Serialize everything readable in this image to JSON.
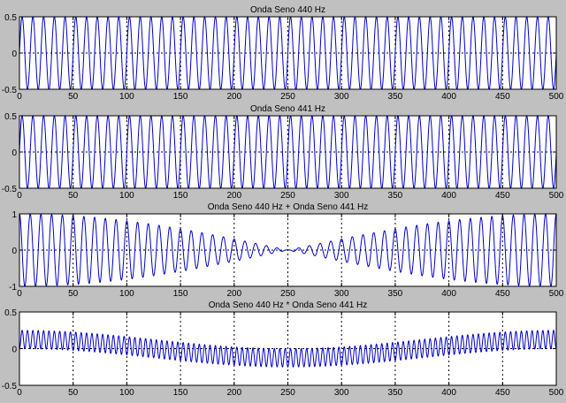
{
  "figure": {
    "background": "#c0c0c0",
    "axes_color": "#ffffff",
    "line_color": "#0000c8",
    "grid_color": "#000000"
  },
  "chart_data": [
    {
      "type": "line",
      "title": "Onda Seno 440 Hz",
      "xlabel": "",
      "ylabel": "",
      "xlim": [
        0,
        500
      ],
      "ylim": [
        -0.5,
        0.5
      ],
      "xticks": [
        "0",
        "50",
        "100",
        "150",
        "200",
        "250",
        "300",
        "350",
        "400",
        "450",
        "500"
      ],
      "yticks": [
        "-0.5",
        "0",
        "0.5"
      ],
      "grid": true,
      "series": [
        {
          "amplitude": 0.5,
          "cycles_in_view": 50,
          "freq_hz": 440
        }
      ]
    },
    {
      "type": "line",
      "title": "Onda Seno 441 Hz",
      "xlabel": "",
      "ylabel": "",
      "xlim": [
        0,
        500
      ],
      "ylim": [
        -0.5,
        0.5
      ],
      "xticks": [
        "0",
        "50",
        "100",
        "150",
        "200",
        "250",
        "300",
        "350",
        "400",
        "450",
        "500"
      ],
      "yticks": [
        "-0.5",
        "0",
        "0.5"
      ],
      "grid": true,
      "series": [
        {
          "amplitude": 0.5,
          "cycles_in_view": 50,
          "freq_hz": 441
        }
      ]
    },
    {
      "type": "line",
      "title": "Onda Seno 440 Hz + Onda Seno 441 Hz",
      "xlabel": "",
      "ylabel": "",
      "xlim": [
        0,
        500
      ],
      "ylim": [
        -1,
        1
      ],
      "xticks": [
        "0",
        "50",
        "100",
        "150",
        "200",
        "250",
        "300",
        "350",
        "400",
        "450",
        "500"
      ],
      "yticks": [
        "-1",
        "0",
        "1"
      ],
      "grid": true,
      "series": [
        {
          "amplitude": 1.0,
          "cycles_in_view": 50,
          "envelope": "beat_sum",
          "min_envelope_at_x": 250
        }
      ]
    },
    {
      "type": "line",
      "title": "Onda Seno 440 Hz * Onda Seno 441 Hz",
      "xlabel": "",
      "ylabel": "",
      "xlim": [
        0,
        500
      ],
      "ylim": [
        -0.5,
        0.5
      ],
      "xticks": [
        "0",
        "50",
        "100",
        "150",
        "200",
        "250",
        "300",
        "350",
        "400",
        "450",
        "500"
      ],
      "yticks": [
        "-0.5",
        "0",
        "0.5"
      ],
      "grid": true,
      "series": [
        {
          "amplitude": 0.25,
          "cycles_in_view": 100,
          "envelope": "beat_product",
          "min_envelope_at_x": 250
        }
      ]
    }
  ]
}
